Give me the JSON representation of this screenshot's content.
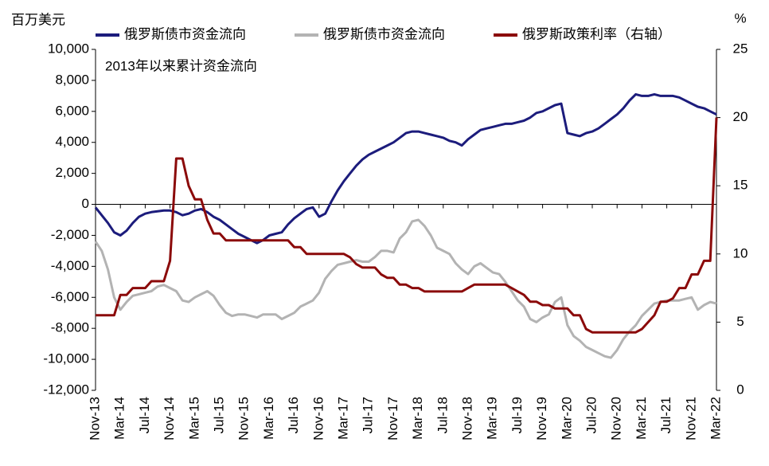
{
  "chart_data": {
    "type": "line",
    "y_label": "百万美元",
    "y2_label": "%",
    "annotation": "2013年以来累计资金流向",
    "categories": [
      "Nov-13",
      null,
      null,
      null,
      "Mar-14",
      null,
      null,
      null,
      "Jul-14",
      null,
      null,
      null,
      "Nov-14",
      null,
      null,
      null,
      "Mar-15",
      null,
      null,
      null,
      "Jul-15",
      null,
      null,
      null,
      "Nov-15",
      null,
      null,
      null,
      "Mar-16",
      null,
      null,
      null,
      "Jul-16",
      null,
      null,
      null,
      "Nov-16",
      null,
      null,
      null,
      "Mar-17",
      null,
      null,
      null,
      "Jul-17",
      null,
      null,
      null,
      "Nov-17",
      null,
      null,
      null,
      "Mar-18",
      null,
      null,
      null,
      "Jul-18",
      null,
      null,
      null,
      "Nov-18",
      null,
      null,
      null,
      "Mar-19",
      null,
      null,
      null,
      "Jul-19",
      null,
      null,
      null,
      "Nov-19",
      null,
      null,
      null,
      "Mar-20",
      null,
      null,
      null,
      "Jul-20",
      null,
      null,
      null,
      "Nov-20",
      null,
      null,
      null,
      "Mar-21",
      null,
      null,
      null,
      "Jul-21",
      null,
      null,
      null,
      "Nov-21",
      null,
      null,
      null,
      "Mar-22"
    ],
    "series": [
      {
        "name": "俄罗斯债市资金流向",
        "color": "#1c1c7c",
        "values": [
          -200,
          -700,
          -1200,
          -1800,
          -2000,
          -1700,
          -1200,
          -800,
          -600,
          -500,
          -450,
          -400,
          -400,
          -500,
          -700,
          -600,
          -400,
          -300,
          -500,
          -800,
          -1000,
          -1300,
          -1600,
          -1900,
          -2100,
          -2300,
          -2500,
          -2300,
          -2000,
          -1900,
          -1800,
          -1300,
          -900,
          -600,
          -300,
          -200,
          -800,
          -600,
          200,
          900,
          1500,
          2000,
          2500,
          2900,
          3200,
          3400,
          3600,
          3800,
          4000,
          4300,
          4600,
          4700,
          4700,
          4600,
          4500,
          4400,
          4300,
          4100,
          4000,
          3800,
          4200,
          4500,
          4800,
          4900,
          5000,
          5100,
          5200,
          5200,
          5300,
          5400,
          5600,
          5900,
          6000,
          6200,
          6400,
          6500,
          4600,
          4500,
          4400,
          4600,
          4700,
          4900,
          5200,
          5500,
          5800,
          6200,
          6700,
          7100,
          7000,
          7000,
          7100,
          7000,
          7000,
          7000,
          6900,
          6700,
          6500,
          6300,
          6200,
          6000,
          5800
        ]
      },
      {
        "name": "俄罗斯债市资金流向",
        "color": "#b3b3b3",
        "values": [
          -2400,
          -3000,
          -4200,
          -6000,
          -6800,
          -6300,
          -5900,
          -5800,
          -5700,
          -5600,
          -5300,
          -5200,
          -5400,
          -5600,
          -6200,
          -6300,
          -6000,
          -5800,
          -5600,
          -5900,
          -6500,
          -7000,
          -7200,
          -7100,
          -7100,
          -7200,
          -7300,
          -7100,
          -7100,
          -7100,
          -7400,
          -7200,
          -7000,
          -6600,
          -6400,
          -6200,
          -5700,
          -4800,
          -4300,
          -3900,
          -3800,
          -3700,
          -3600,
          -3700,
          -3700,
          -3400,
          -3000,
          -3000,
          -3100,
          -2200,
          -1800,
          -1100,
          -1000,
          -1400,
          -2000,
          -2800,
          -3000,
          -3200,
          -3800,
          -4200,
          -4500,
          -4000,
          -3800,
          -4100,
          -4400,
          -4500,
          -5000,
          -5600,
          -6200,
          -6600,
          -7400,
          -7600,
          -7300,
          -7100,
          -6300,
          -6000,
          -7800,
          -8500,
          -8800,
          -9200,
          -9400,
          -9600,
          -9800,
          -9900,
          -9400,
          -8700,
          -8200,
          -7800,
          -7200,
          -6800,
          -6400,
          -6300,
          -6200,
          -6200,
          -6200,
          -6100,
          -6000,
          -6800,
          -6500,
          -6300,
          -6400
        ]
      },
      {
        "name": "俄罗斯政策利率（右轴）",
        "color": "#8b0a0a",
        "axis": "y2",
        "values": [
          5.5,
          5.5,
          5.5,
          5.5,
          7,
          7,
          7.5,
          7.5,
          7.5,
          8,
          8,
          8,
          9.5,
          17,
          17,
          15,
          14,
          14,
          12.5,
          11.5,
          11.5,
          11,
          11,
          11,
          11,
          11,
          11,
          11,
          11,
          11,
          11,
          11,
          10.5,
          10.5,
          10,
          10,
          10,
          10,
          10,
          10,
          10,
          9.75,
          9.25,
          9,
          9,
          9,
          8.5,
          8.25,
          8.25,
          7.75,
          7.75,
          7.5,
          7.5,
          7.25,
          7.25,
          7.25,
          7.25,
          7.25,
          7.25,
          7.25,
          7.5,
          7.75,
          7.75,
          7.75,
          7.75,
          7.75,
          7.75,
          7.5,
          7.25,
          7,
          6.5,
          6.5,
          6.25,
          6.25,
          6,
          6,
          6,
          5.5,
          5.5,
          4.5,
          4.25,
          4.25,
          4.25,
          4.25,
          4.25,
          4.25,
          4.25,
          4.25,
          4.5,
          5,
          5.5,
          6.5,
          6.5,
          6.75,
          7.5,
          7.5,
          8.5,
          8.5,
          9.5,
          9.5,
          20
        ]
      }
    ],
    "ylim": [
      -12000,
      10000
    ],
    "yticks": [
      {
        "value": -12000,
        "label": "-12,000"
      },
      {
        "value": -10000,
        "label": "-10,000"
      },
      {
        "value": -8000,
        "label": "-8,000"
      },
      {
        "value": -6000,
        "label": "-6,000"
      },
      {
        "value": -4000,
        "label": "-4,000"
      },
      {
        "value": -2000,
        "label": "-2,000"
      },
      0,
      {
        "value": 2000,
        "label": "2,000"
      },
      {
        "value": 4000,
        "label": "4,000"
      },
      {
        "value": 6000,
        "label": "6,000"
      },
      {
        "value": 8000,
        "label": "8,000"
      },
      {
        "value": 10000,
        "label": "10,000"
      }
    ],
    "y2lim": [
      0,
      25
    ],
    "y2ticks": [
      0,
      5,
      10,
      15,
      20,
      25
    ],
    "grid": false
  }
}
